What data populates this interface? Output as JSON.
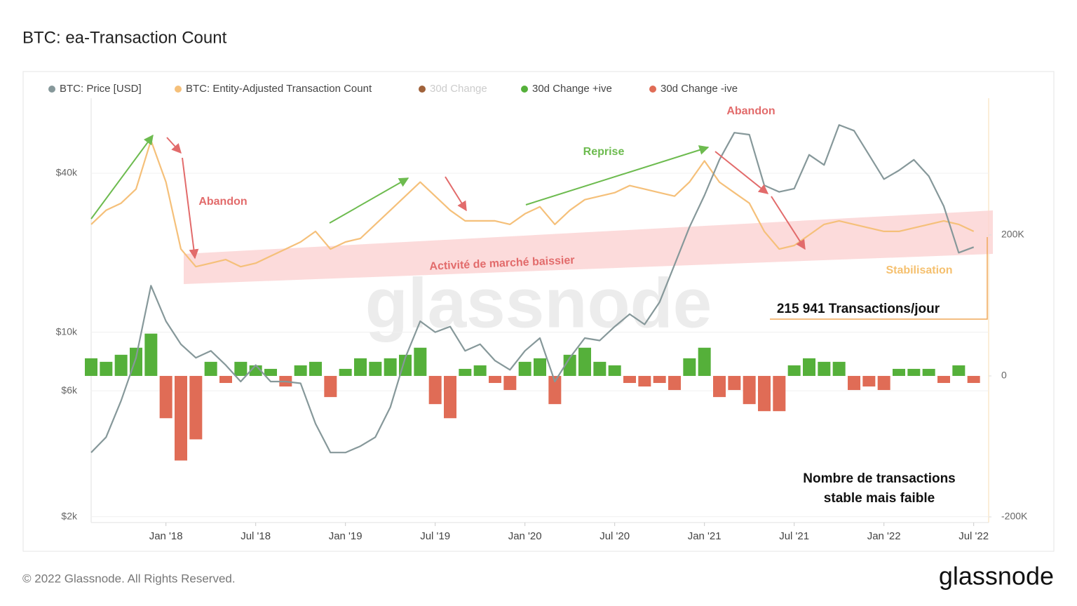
{
  "chart_data": {
    "type": "line",
    "title": "BTC: ea-Transaction Count",
    "watermark": "glassnode",
    "footer": "© 2022 Glassnode. All Rights Reserved.",
    "logo": "glassnode",
    "x": [
      "2017-08",
      "2017-09",
      "2017-10",
      "2017-11",
      "2017-12",
      "2018-01",
      "2018-02",
      "2018-03",
      "2018-04",
      "2018-05",
      "2018-06",
      "2018-07",
      "2018-08",
      "2018-09",
      "2018-10",
      "2018-11",
      "2018-12",
      "2019-01",
      "2019-02",
      "2019-03",
      "2019-04",
      "2019-05",
      "2019-06",
      "2019-07",
      "2019-08",
      "2019-09",
      "2019-10",
      "2019-11",
      "2019-12",
      "2020-01",
      "2020-02",
      "2020-03",
      "2020-04",
      "2020-05",
      "2020-06",
      "2020-07",
      "2020-08",
      "2020-09",
      "2020-10",
      "2020-11",
      "2020-12",
      "2021-01",
      "2021-02",
      "2021-03",
      "2021-04",
      "2021-05",
      "2021-06",
      "2021-07",
      "2021-08",
      "2021-09",
      "2021-10",
      "2021-11",
      "2021-12",
      "2022-01",
      "2022-02",
      "2022-03",
      "2022-04",
      "2022-05",
      "2022-06",
      "2022-07"
    ],
    "xlim": [
      "2017-08",
      "2022-08"
    ],
    "xticks": [
      {
        "value": "2018-01",
        "label": "Jan '18"
      },
      {
        "value": "2018-07",
        "label": "Jul '18"
      },
      {
        "value": "2019-01",
        "label": "Jan '19"
      },
      {
        "value": "2019-07",
        "label": "Jul '19"
      },
      {
        "value": "2020-01",
        "label": "Jan '20"
      },
      {
        "value": "2020-07",
        "label": "Jul '20"
      },
      {
        "value": "2021-01",
        "label": "Jan '21"
      },
      {
        "value": "2021-07",
        "label": "Jul '21"
      },
      {
        "value": "2022-01",
        "label": "Jan '22"
      },
      {
        "value": "2022-07",
        "label": "Jul '22"
      }
    ],
    "ylim": [
      1900,
      77000
    ],
    "yscale": "log",
    "yticks": [
      {
        "value": 2000,
        "label": "$2k"
      },
      {
        "value": 6000,
        "label": "$6k"
      },
      {
        "value": 10000,
        "label": "$10k"
      },
      {
        "value": 40000,
        "label": "$40k"
      }
    ],
    "y2lim": [
      -208000,
      394000
    ],
    "y2ticks": [
      {
        "value": -200000,
        "label": "-200K"
      },
      0,
      {
        "value": 200000,
        "label": "200K"
      }
    ],
    "grid": true,
    "series": [
      {
        "name": "BTC: Price [USD]",
        "color": "#86989a",
        "kind": "line",
        "values": [
          3500,
          4000,
          5500,
          8000,
          15000,
          11000,
          9000,
          8000,
          8500,
          7500,
          6500,
          7500,
          6500,
          6500,
          6400,
          4500,
          3500,
          3500,
          3700,
          4000,
          5200,
          8000,
          11000,
          10000,
          10500,
          8500,
          9000,
          7800,
          7200,
          8500,
          9500,
          6500,
          8000,
          9500,
          9300,
          10500,
          11700,
          10700,
          13000,
          18000,
          25000,
          33000,
          45000,
          57000,
          56000,
          36000,
          34000,
          35000,
          47000,
          43000,
          61000,
          58000,
          47000,
          38000,
          41000,
          45000,
          39000,
          30000,
          20000,
          21000
        ]
      },
      {
        "name": "BTC: Entity-Adjusted Transaction Count",
        "color": "#f5c07a",
        "kind": "line",
        "axis": "y2",
        "values": [
          215000,
          235000,
          245000,
          265000,
          334000,
          275000,
          180000,
          155000,
          160000,
          165000,
          155000,
          160000,
          170000,
          180000,
          190000,
          205000,
          180000,
          190000,
          195000,
          215000,
          235000,
          255000,
          275000,
          255000,
          235000,
          220000,
          220000,
          220000,
          215000,
          230000,
          240000,
          215000,
          235000,
          250000,
          255000,
          260000,
          270000,
          265000,
          260000,
          255000,
          275000,
          305000,
          275000,
          260000,
          245000,
          205000,
          180000,
          185000,
          200000,
          215000,
          220000,
          215000,
          210000,
          205000,
          205000,
          210000,
          215000,
          220000,
          215000,
          205000
        ]
      },
      {
        "name": "30d Change",
        "color": "#a0623a",
        "visible": false
      },
      {
        "name": "30d Change +ive",
        "color": "#55b03a",
        "kind": "bar",
        "axis": "y2",
        "values": [
          25000,
          20000,
          30000,
          40000,
          60000,
          null,
          null,
          null,
          20000,
          null,
          20000,
          15000,
          10000,
          null,
          15000,
          20000,
          null,
          10000,
          25000,
          20000,
          25000,
          30000,
          40000,
          null,
          null,
          10000,
          15000,
          null,
          null,
          20000,
          25000,
          null,
          30000,
          40000,
          20000,
          15000,
          null,
          null,
          null,
          null,
          25000,
          40000,
          null,
          null,
          null,
          null,
          null,
          15000,
          25000,
          20000,
          20000,
          null,
          null,
          null,
          10000,
          10000,
          10000,
          null,
          15000,
          null
        ]
      },
      {
        "name": "30d Change -ive",
        "color": "#e06c56",
        "kind": "bar",
        "axis": "y2",
        "values": [
          null,
          null,
          null,
          null,
          null,
          -60000,
          -120000,
          -90000,
          null,
          -10000,
          null,
          null,
          null,
          -15000,
          null,
          null,
          -30000,
          null,
          null,
          null,
          null,
          null,
          null,
          -40000,
          -60000,
          null,
          null,
          -10000,
          -20000,
          null,
          null,
          -40000,
          null,
          null,
          null,
          null,
          -10000,
          -15000,
          -10000,
          -20000,
          null,
          null,
          -30000,
          -20000,
          -40000,
          -50000,
          -50000,
          null,
          null,
          null,
          null,
          -20000,
          -15000,
          -20000,
          null,
          null,
          null,
          -10000,
          null,
          -10000
        ]
      }
    ],
    "annotations": [
      "Abandon",
      "Reprise",
      "Abandon",
      "Activité de marché baissier",
      "Stabilisation",
      "215 941 Transactions/jour",
      "Nombre de transactions",
      "stable mais faible"
    ]
  }
}
